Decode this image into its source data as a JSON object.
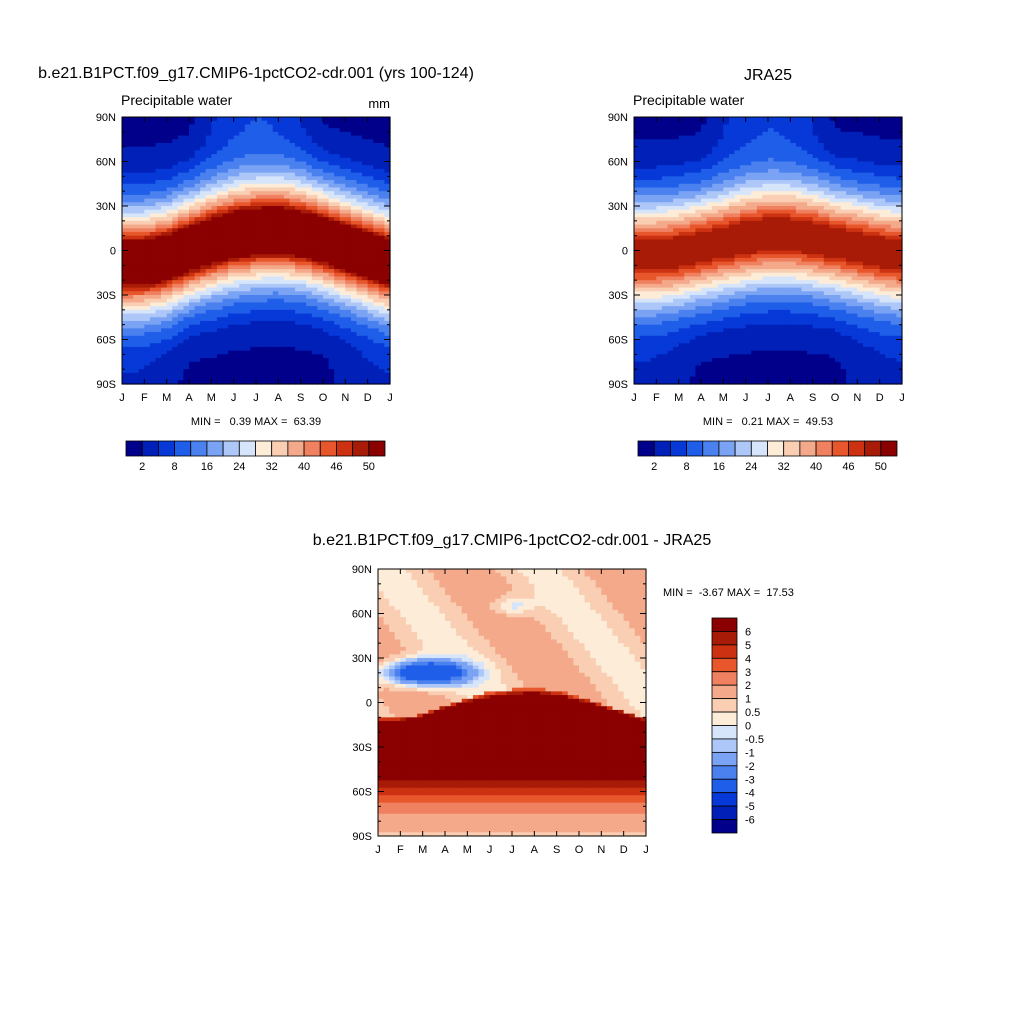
{
  "chart_data": [
    {
      "type": "heatmap",
      "title": "b.e21.B1PCT.f09_g17.CMIP6-1pctCO2-cdr.001 (yrs 100-124)",
      "left_label": "Precipitable water",
      "right_label": "mm",
      "x_ticks": [
        "J",
        "F",
        "M",
        "A",
        "M",
        "J",
        "J",
        "A",
        "S",
        "O",
        "N",
        "D",
        "J"
      ],
      "y_ticks": [
        "90N",
        "60N",
        "30N",
        "0",
        "30S",
        "60S",
        "90S"
      ],
      "y_range": [
        -90,
        90
      ],
      "itcz_lat_by_month": [
        -8,
        -8,
        -5,
        1,
        6,
        10,
        12,
        13,
        11,
        7,
        2,
        -3,
        -8
      ],
      "equator_peak_mm": 55,
      "stats_text": "MIN =   0.39 MAX =  63.39",
      "min": 0.39,
      "max": 63.39,
      "colorbar": {
        "levels": [
          2,
          5,
          8,
          12,
          16,
          20,
          24,
          28,
          32,
          36,
          40,
          43,
          46,
          48,
          50
        ],
        "tick_labels": [
          "2",
          "8",
          "16",
          "24",
          "32",
          "40",
          "46",
          "50"
        ],
        "tick_level_index": [
          0,
          2,
          4,
          6,
          8,
          10,
          12,
          14
        ]
      }
    },
    {
      "type": "heatmap",
      "title": "JRA25",
      "left_label": "Precipitable water",
      "x_ticks": [
        "J",
        "F",
        "M",
        "A",
        "M",
        "J",
        "J",
        "A",
        "S",
        "O",
        "N",
        "D",
        "J"
      ],
      "y_ticks": [
        "90N",
        "60N",
        "30N",
        "0",
        "30S",
        "60S",
        "90S"
      ],
      "y_range": [
        -90,
        90
      ],
      "itcz_lat_by_month": [
        -3,
        -3,
        -1,
        2,
        5,
        8,
        10,
        10,
        8,
        5,
        2,
        -1,
        -3
      ],
      "equator_peak_mm": 47,
      "stats_text": "MIN =   0.21 MAX =  49.53",
      "min": 0.21,
      "max": 49.53,
      "colorbar": {
        "levels": [
          2,
          5,
          8,
          12,
          16,
          20,
          24,
          28,
          32,
          36,
          40,
          43,
          46,
          48,
          50
        ],
        "tick_labels": [
          "2",
          "8",
          "16",
          "24",
          "32",
          "40",
          "46",
          "50"
        ],
        "tick_level_index": [
          0,
          2,
          4,
          6,
          8,
          10,
          12,
          14
        ]
      }
    },
    {
      "type": "heatmap",
      "title": "b.e21.B1PCT.f09_g17.CMIP6-1pctCO2-cdr.001 - JRA25",
      "x_ticks": [
        "J",
        "F",
        "M",
        "A",
        "M",
        "J",
        "J",
        "A",
        "S",
        "O",
        "N",
        "D",
        "J"
      ],
      "y_ticks": [
        "90N",
        "60N",
        "30N",
        "0",
        "30S",
        "60S",
        "90S"
      ],
      "y_range": [
        -90,
        90
      ],
      "stats_text": "MIN =  -3.67 MAX =  17.53",
      "min": -3.67,
      "max": 17.53,
      "colorbar": {
        "levels": [
          -6,
          -5,
          -4,
          -3,
          -2,
          -1,
          -0.5,
          0,
          0.5,
          1,
          2,
          3,
          4,
          5,
          6
        ],
        "tick_labels": [
          "6",
          "5",
          "4",
          "3",
          "2",
          "1",
          "0.5",
          "0",
          "-0.5",
          "-1",
          "-2",
          "-3",
          "-4",
          "-5",
          "-6"
        ]
      }
    }
  ],
  "colors": {
    "sequential": [
      "#00008b",
      "#0020b8",
      "#0639d8",
      "#1f5ee8",
      "#4a81ef",
      "#7ba3f4",
      "#adc7f8",
      "#d7e5fb",
      "#fcecd8",
      "#f9ceb2",
      "#f4a98b",
      "#ef8060",
      "#e8572c",
      "#cc3211",
      "#a81b06",
      "#8b0000"
    ],
    "diverging": [
      "#00008b",
      "#0020b8",
      "#0639d8",
      "#1f5ee8",
      "#4a81ef",
      "#7ba3f4",
      "#adc7f8",
      "#d7e5fb",
      "#fcecd8",
      "#f9ceb2",
      "#f4a98b",
      "#ef8060",
      "#e8572c",
      "#cc3211",
      "#a81b06",
      "#8b0000"
    ]
  }
}
